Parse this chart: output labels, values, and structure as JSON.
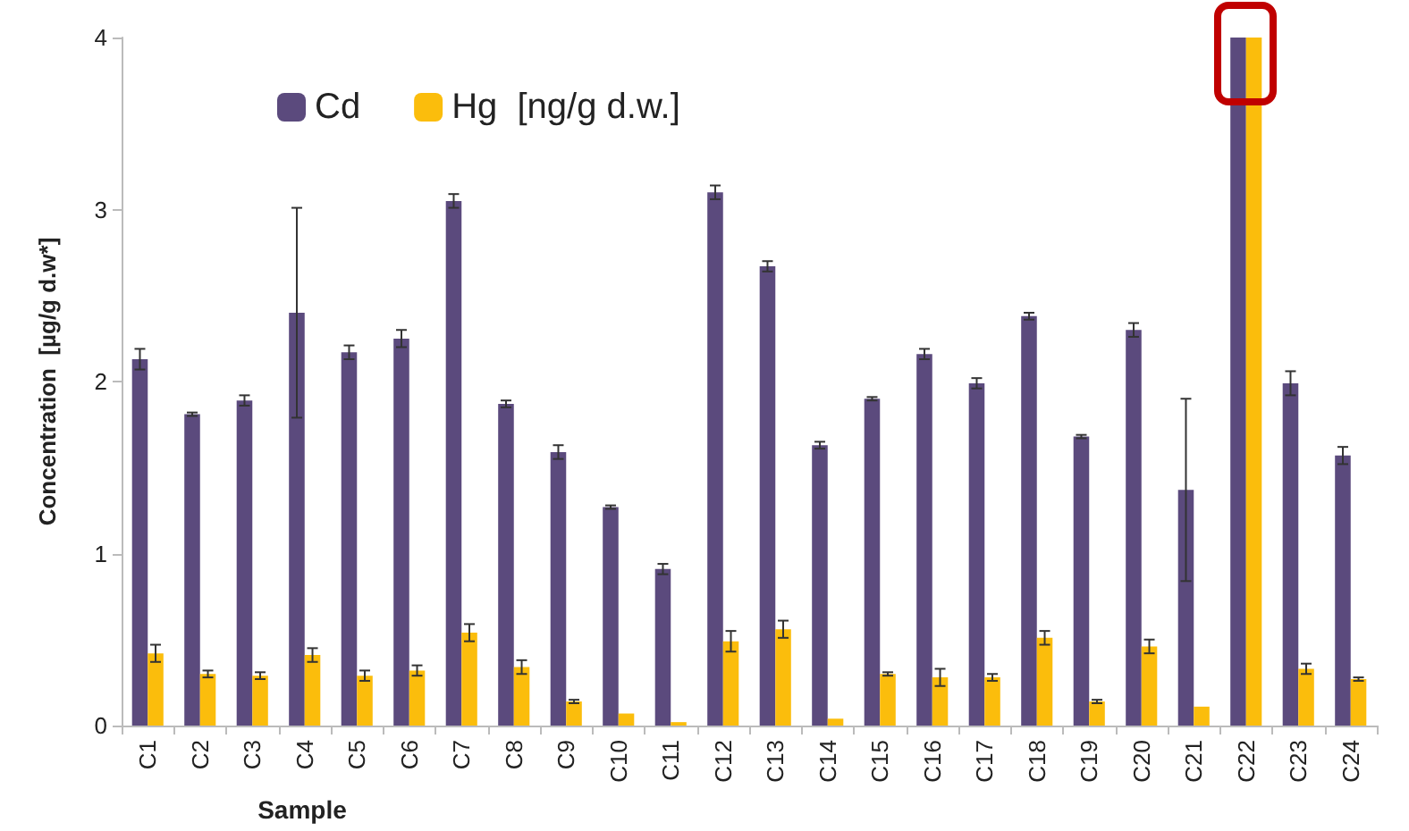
{
  "chart_data": {
    "type": "bar",
    "xlabel": "Sample",
    "ylabel": "Concentration  [µg/g d.w*]",
    "categories": [
      "C1",
      "C2",
      "C3",
      "C4",
      "C5",
      "C6",
      "C7",
      "C8",
      "C9",
      "C10",
      "C11",
      "C12",
      "C13",
      "C14",
      "C15",
      "C16",
      "C17",
      "C18",
      "C19",
      "C20",
      "C21",
      "C22",
      "C23",
      "C24"
    ],
    "series": [
      {
        "name": "Cd",
        "color": "#5b4a7d",
        "values": [
          2.13,
          1.81,
          1.89,
          2.4,
          2.17,
          2.25,
          3.05,
          1.87,
          1.59,
          1.27,
          0.91,
          3.1,
          2.67,
          1.63,
          1.9,
          2.16,
          1.99,
          2.38,
          1.68,
          2.3,
          1.37,
          4.0,
          1.99,
          1.57
        ],
        "errors": [
          0.06,
          0.01,
          0.03,
          0.61,
          0.04,
          0.05,
          0.04,
          0.02,
          0.04,
          0.01,
          0.03,
          0.04,
          0.03,
          0.02,
          0.01,
          0.03,
          0.03,
          0.02,
          0.01,
          0.04,
          0.53,
          null,
          0.07,
          0.05
        ]
      },
      {
        "name": "Hg  [ng/g d.w.]",
        "color": "#fbbd0c",
        "values": [
          0.42,
          0.3,
          0.29,
          0.41,
          0.29,
          0.32,
          0.54,
          0.34,
          0.14,
          0.07,
          0.02,
          0.49,
          0.56,
          0.04,
          0.3,
          0.28,
          0.28,
          0.51,
          0.14,
          0.46,
          0.11,
          4.0,
          0.33,
          0.27
        ],
        "errors": [
          0.05,
          0.02,
          0.02,
          0.04,
          0.03,
          0.03,
          0.05,
          0.04,
          0.01,
          null,
          null,
          0.06,
          0.05,
          null,
          0.01,
          0.05,
          0.02,
          0.04,
          0.01,
          0.04,
          null,
          null,
          0.03,
          0.01
        ]
      }
    ],
    "ylim": [
      0,
      4
    ],
    "yticks": [
      0,
      1,
      2,
      3,
      4
    ],
    "grid": false,
    "legend": "top left"
  }
}
